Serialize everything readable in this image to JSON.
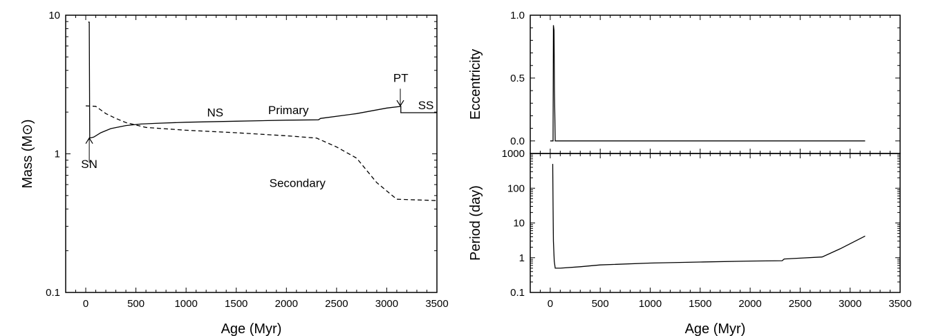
{
  "chart_data": [
    {
      "type": "line",
      "panel": "left",
      "xlabel": "Age (Myr)",
      "ylabel": "Mass (M",
      "ylabel_symbol": "⊙",
      "ylabel_close": ")",
      "xlim": [
        -200,
        3500
      ],
      "ylim": [
        0.1,
        10
      ],
      "yscale": "log",
      "xticks": [
        0,
        500,
        1000,
        1500,
        2000,
        2500,
        3000,
        3500
      ],
      "xtick_labels": [
        "0",
        "500",
        "1000",
        "1500",
        "2000",
        "2500",
        "3000",
        "3500"
      ],
      "yticks": [
        0.1,
        1,
        10
      ],
      "ytick_labels": [
        "0.1",
        "1",
        "10"
      ],
      "series": [
        {
          "name": "Primary",
          "style": "solid",
          "x": [
            30,
            30,
            35,
            40,
            80,
            150,
            250,
            400,
            550,
            700,
            1000,
            1500,
            2000,
            2320,
            2340,
            2700,
            3000,
            3140,
            3140,
            3500
          ],
          "y": [
            9.0,
            8.9,
            8.9,
            1.3,
            1.32,
            1.42,
            1.52,
            1.6,
            1.64,
            1.66,
            1.69,
            1.72,
            1.75,
            1.76,
            1.8,
            1.95,
            2.14,
            2.2,
            1.98,
            1.98
          ]
        },
        {
          "name": "Secondary",
          "style": "dashed",
          "x": [
            0,
            100,
            200,
            300,
            400,
            600,
            1000,
            1500,
            2000,
            2300,
            2500,
            2700,
            2900,
            3100,
            3500
          ],
          "y": [
            2.22,
            2.2,
            1.95,
            1.8,
            1.68,
            1.55,
            1.48,
            1.42,
            1.35,
            1.3,
            1.12,
            0.93,
            0.62,
            0.47,
            0.46
          ]
        }
      ],
      "annotations": [
        {
          "text": "NS",
          "x": 1290,
          "y": 1.86
        },
        {
          "text": "Primary",
          "x": 2020,
          "y": 1.93
        },
        {
          "text": "PT",
          "x": 3140,
          "y": 3.3
        },
        {
          "text": "SS",
          "x": 3390,
          "y": 2.1
        },
        {
          "text": "Secondary",
          "x": 2110,
          "y": 0.575
        },
        {
          "text": "SN",
          "x": 35,
          "y": 0.79
        }
      ]
    },
    {
      "type": "line",
      "panel": "right-top",
      "xlabel": "",
      "ylabel": "Eccentricity",
      "xlim": [
        -200,
        3500
      ],
      "ylim": [
        -0.1,
        1.0
      ],
      "yticks": [
        0.0,
        0.5,
        1.0
      ],
      "ytick_labels": [
        "0.0",
        "0.5",
        "1.0"
      ],
      "series": [
        {
          "name": "",
          "style": "solid",
          "x": [
            0,
            28,
            32,
            38,
            42,
            50,
            3150
          ],
          "y": [
            0.0,
            0.0,
            0.92,
            0.88,
            0.4,
            0.0,
            0.0
          ]
        }
      ]
    },
    {
      "type": "line",
      "panel": "right-bottom",
      "xlabel": "Age (Myr)",
      "ylabel": "Period (day)",
      "xlim": [
        -200,
        3500
      ],
      "ylim": [
        0.1,
        1000
      ],
      "yscale": "log",
      "xticks": [
        0,
        500,
        1000,
        1500,
        2000,
        2500,
        3000,
        3500
      ],
      "xtick_labels": [
        "0",
        "500",
        "1000",
        "1500",
        "2000",
        "2500",
        "3000",
        "3500"
      ],
      "yticks": [
        0.1,
        1,
        10,
        100,
        1000
      ],
      "ytick_labels": [
        "0.1",
        "1",
        "10",
        "100",
        "1000"
      ],
      "series": [
        {
          "name": "",
          "style": "solid",
          "x": [
            25,
            25,
            28,
            30,
            32,
            40,
            50,
            100,
            300,
            500,
            1000,
            1500,
            2000,
            2320,
            2340,
            2500,
            2720,
            2900,
            3150
          ],
          "y": [
            500,
            500,
            30,
            7,
            3,
            0.8,
            0.5,
            0.5,
            0.55,
            0.62,
            0.7,
            0.75,
            0.8,
            0.82,
            0.92,
            0.97,
            1.05,
            1.8,
            4.2
          ]
        }
      ]
    }
  ]
}
